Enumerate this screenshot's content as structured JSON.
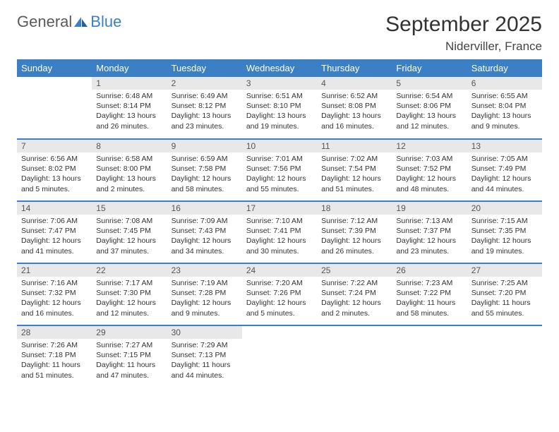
{
  "brand": {
    "part1": "General",
    "part2": "Blue"
  },
  "title": "September 2025",
  "location": "Niderviller, France",
  "colors": {
    "header_bg": "#3b7fc4",
    "header_text": "#ffffff",
    "daynum_bg": "#e8e8e8",
    "row_divider": "#3b7fc4",
    "text": "#333333",
    "logo_gray": "#5a5a5a",
    "logo_blue": "#3b7fc4"
  },
  "weekdays": [
    "Sunday",
    "Monday",
    "Tuesday",
    "Wednesday",
    "Thursday",
    "Friday",
    "Saturday"
  ],
  "weeks": [
    [
      null,
      {
        "n": "1",
        "sr": "Sunrise: 6:48 AM",
        "ss": "Sunset: 8:14 PM",
        "dl": "Daylight: 13 hours and 26 minutes."
      },
      {
        "n": "2",
        "sr": "Sunrise: 6:49 AM",
        "ss": "Sunset: 8:12 PM",
        "dl": "Daylight: 13 hours and 23 minutes."
      },
      {
        "n": "3",
        "sr": "Sunrise: 6:51 AM",
        "ss": "Sunset: 8:10 PM",
        "dl": "Daylight: 13 hours and 19 minutes."
      },
      {
        "n": "4",
        "sr": "Sunrise: 6:52 AM",
        "ss": "Sunset: 8:08 PM",
        "dl": "Daylight: 13 hours and 16 minutes."
      },
      {
        "n": "5",
        "sr": "Sunrise: 6:54 AM",
        "ss": "Sunset: 8:06 PM",
        "dl": "Daylight: 13 hours and 12 minutes."
      },
      {
        "n": "6",
        "sr": "Sunrise: 6:55 AM",
        "ss": "Sunset: 8:04 PM",
        "dl": "Daylight: 13 hours and 9 minutes."
      }
    ],
    [
      {
        "n": "7",
        "sr": "Sunrise: 6:56 AM",
        "ss": "Sunset: 8:02 PM",
        "dl": "Daylight: 13 hours and 5 minutes."
      },
      {
        "n": "8",
        "sr": "Sunrise: 6:58 AM",
        "ss": "Sunset: 8:00 PM",
        "dl": "Daylight: 13 hours and 2 minutes."
      },
      {
        "n": "9",
        "sr": "Sunrise: 6:59 AM",
        "ss": "Sunset: 7:58 PM",
        "dl": "Daylight: 12 hours and 58 minutes."
      },
      {
        "n": "10",
        "sr": "Sunrise: 7:01 AM",
        "ss": "Sunset: 7:56 PM",
        "dl": "Daylight: 12 hours and 55 minutes."
      },
      {
        "n": "11",
        "sr": "Sunrise: 7:02 AM",
        "ss": "Sunset: 7:54 PM",
        "dl": "Daylight: 12 hours and 51 minutes."
      },
      {
        "n": "12",
        "sr": "Sunrise: 7:03 AM",
        "ss": "Sunset: 7:52 PM",
        "dl": "Daylight: 12 hours and 48 minutes."
      },
      {
        "n": "13",
        "sr": "Sunrise: 7:05 AM",
        "ss": "Sunset: 7:49 PM",
        "dl": "Daylight: 12 hours and 44 minutes."
      }
    ],
    [
      {
        "n": "14",
        "sr": "Sunrise: 7:06 AM",
        "ss": "Sunset: 7:47 PM",
        "dl": "Daylight: 12 hours and 41 minutes."
      },
      {
        "n": "15",
        "sr": "Sunrise: 7:08 AM",
        "ss": "Sunset: 7:45 PM",
        "dl": "Daylight: 12 hours and 37 minutes."
      },
      {
        "n": "16",
        "sr": "Sunrise: 7:09 AM",
        "ss": "Sunset: 7:43 PM",
        "dl": "Daylight: 12 hours and 34 minutes."
      },
      {
        "n": "17",
        "sr": "Sunrise: 7:10 AM",
        "ss": "Sunset: 7:41 PM",
        "dl": "Daylight: 12 hours and 30 minutes."
      },
      {
        "n": "18",
        "sr": "Sunrise: 7:12 AM",
        "ss": "Sunset: 7:39 PM",
        "dl": "Daylight: 12 hours and 26 minutes."
      },
      {
        "n": "19",
        "sr": "Sunrise: 7:13 AM",
        "ss": "Sunset: 7:37 PM",
        "dl": "Daylight: 12 hours and 23 minutes."
      },
      {
        "n": "20",
        "sr": "Sunrise: 7:15 AM",
        "ss": "Sunset: 7:35 PM",
        "dl": "Daylight: 12 hours and 19 minutes."
      }
    ],
    [
      {
        "n": "21",
        "sr": "Sunrise: 7:16 AM",
        "ss": "Sunset: 7:32 PM",
        "dl": "Daylight: 12 hours and 16 minutes."
      },
      {
        "n": "22",
        "sr": "Sunrise: 7:17 AM",
        "ss": "Sunset: 7:30 PM",
        "dl": "Daylight: 12 hours and 12 minutes."
      },
      {
        "n": "23",
        "sr": "Sunrise: 7:19 AM",
        "ss": "Sunset: 7:28 PM",
        "dl": "Daylight: 12 hours and 9 minutes."
      },
      {
        "n": "24",
        "sr": "Sunrise: 7:20 AM",
        "ss": "Sunset: 7:26 PM",
        "dl": "Daylight: 12 hours and 5 minutes."
      },
      {
        "n": "25",
        "sr": "Sunrise: 7:22 AM",
        "ss": "Sunset: 7:24 PM",
        "dl": "Daylight: 12 hours and 2 minutes."
      },
      {
        "n": "26",
        "sr": "Sunrise: 7:23 AM",
        "ss": "Sunset: 7:22 PM",
        "dl": "Daylight: 11 hours and 58 minutes."
      },
      {
        "n": "27",
        "sr": "Sunrise: 7:25 AM",
        "ss": "Sunset: 7:20 PM",
        "dl": "Daylight: 11 hours and 55 minutes."
      }
    ],
    [
      {
        "n": "28",
        "sr": "Sunrise: 7:26 AM",
        "ss": "Sunset: 7:18 PM",
        "dl": "Daylight: 11 hours and 51 minutes."
      },
      {
        "n": "29",
        "sr": "Sunrise: 7:27 AM",
        "ss": "Sunset: 7:15 PM",
        "dl": "Daylight: 11 hours and 47 minutes."
      },
      {
        "n": "30",
        "sr": "Sunrise: 7:29 AM",
        "ss": "Sunset: 7:13 PM",
        "dl": "Daylight: 11 hours and 44 minutes."
      },
      null,
      null,
      null,
      null
    ]
  ]
}
